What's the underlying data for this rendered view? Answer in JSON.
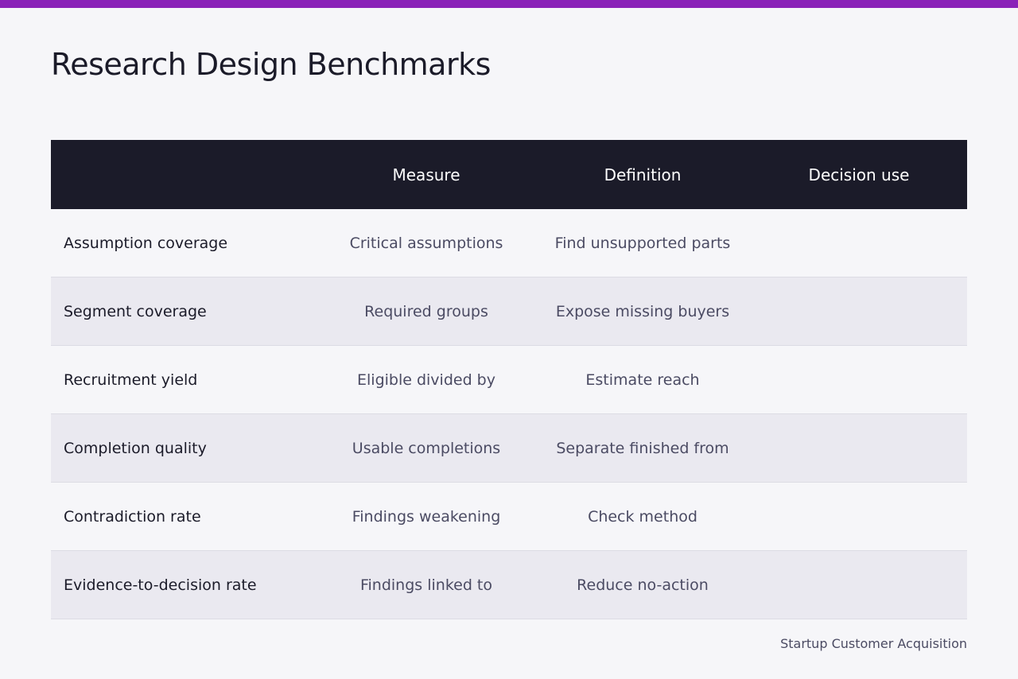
{
  "colors": {
    "accent": "#8a22b8",
    "header_bg": "#1b1b29",
    "page_bg": "#f6f6f9"
  },
  "title": "Research Design Benchmarks",
  "table": {
    "headers": [
      "",
      "Measure",
      "Definition",
      "Decision use"
    ],
    "rows": [
      [
        "Assumption coverage",
        "Critical assumptions",
        "Find unsupported parts",
        ""
      ],
      [
        "Segment coverage",
        "Required groups",
        "Expose missing buyers",
        ""
      ],
      [
        "Recruitment yield",
        "Eligible divided by",
        "Estimate reach",
        ""
      ],
      [
        "Completion quality",
        "Usable completions",
        "Separate finished from",
        ""
      ],
      [
        "Contradiction rate",
        "Findings weakening",
        "Check method",
        ""
      ],
      [
        "Evidence-to-decision rate",
        "Findings linked to",
        "Reduce no-action",
        ""
      ]
    ]
  },
  "footer": "Startup Customer Acquisition"
}
